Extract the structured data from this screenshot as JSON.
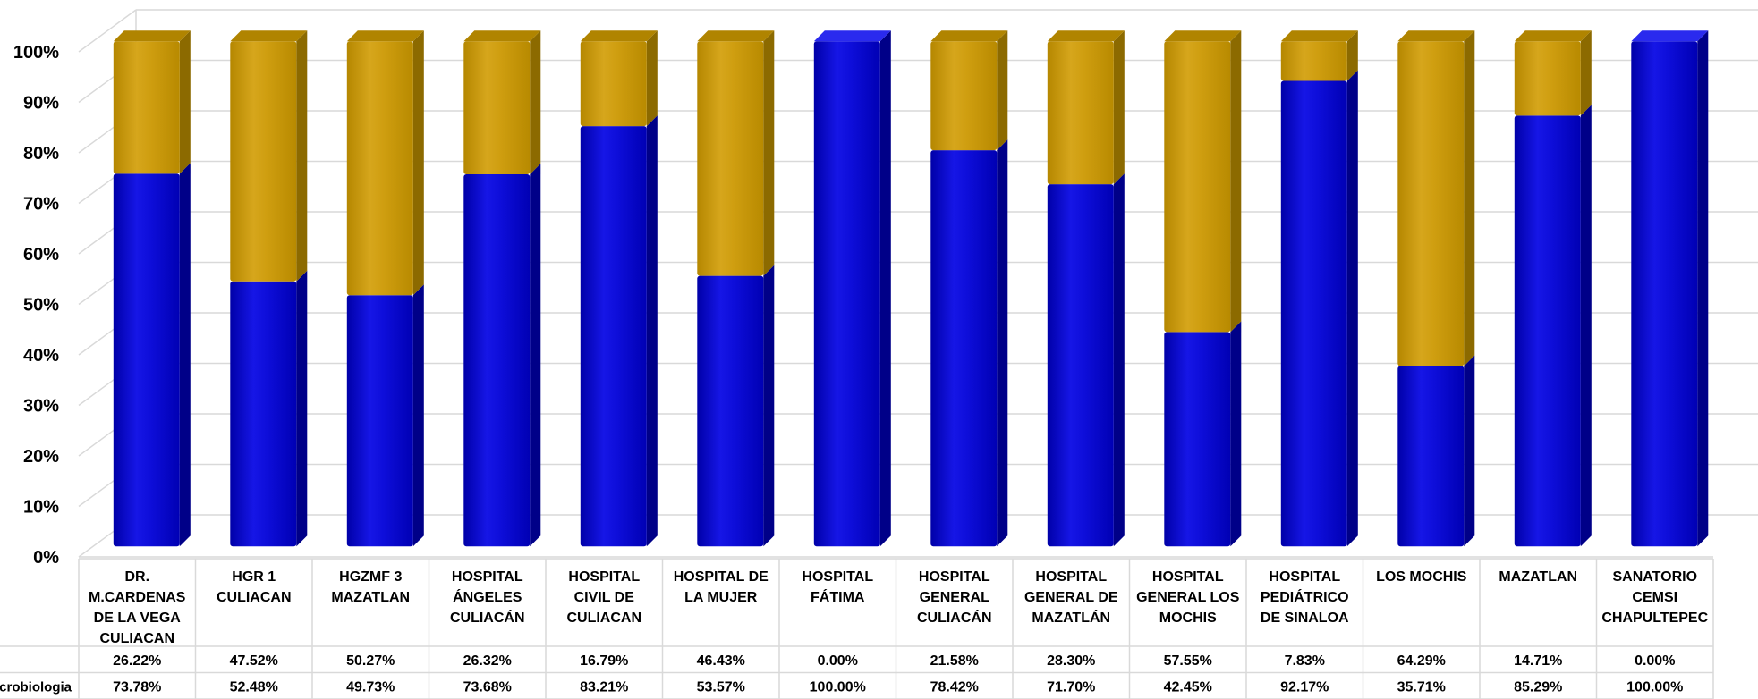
{
  "chart_data": {
    "type": "bar",
    "stacked": true,
    "percent_stacked": true,
    "three_d": true,
    "y_axis": {
      "ticks": [
        "0%",
        "10%",
        "20%",
        "30%",
        "40%",
        "50%",
        "60%",
        "70%",
        "80%",
        "90%",
        "100%"
      ],
      "ylim": [
        0,
        100
      ]
    },
    "grid": true,
    "categories": [
      "DR. M.CARDENAS DE LA VEGA CULIACAN",
      "HGR 1 CULIACAN",
      "HGZMF 3 MAZATLAN",
      "HOSPITAL ÁNGELES CULIACÁN",
      "HOSPITAL CIVIL DE CULIACAN",
      "HOSPITAL DE LA MUJER",
      "HOSPITAL FÁTIMA",
      "HOSPITAL GENERAL CULIACÁN",
      "HOSPITAL GENERAL DE MAZATLÁN",
      "HOSPITAL GENERAL LOS MOCHIS",
      "HOSPITAL PEDIÁTRICO DE SINALOA",
      "LOS MOCHIS",
      "MAZATLAN",
      "SANATORIO CEMSI CHAPULTEPEC"
    ],
    "category_lines": [
      [
        "DR.",
        "M.CARDENAS",
        "DE LA VEGA",
        "CULIACAN"
      ],
      [
        "HGR 1",
        "CULIACAN"
      ],
      [
        "HGZMF 3",
        "MAZATLAN"
      ],
      [
        "HOSPITAL",
        "ÁNGELES",
        "CULIACÁN"
      ],
      [
        "HOSPITAL",
        "CIVIL DE",
        "CULIACAN"
      ],
      [
        "HOSPITAL DE",
        "LA MUJER"
      ],
      [
        "HOSPITAL",
        "FÁTIMA"
      ],
      [
        "HOSPITAL",
        "GENERAL",
        "CULIACÁN"
      ],
      [
        "HOSPITAL",
        "GENERAL DE",
        "MAZATLÁN"
      ],
      [
        "HOSPITAL",
        "GENERAL LOS",
        "MOCHIS"
      ],
      [
        "HOSPITAL",
        "PEDIÁTRICO",
        "DE SINALOA"
      ],
      [
        "LOS MOCHIS"
      ],
      [
        "MAZATLAN"
      ],
      [
        "SANATORIO",
        "CEMSI",
        "CHAPULTEPEC"
      ]
    ],
    "series": [
      {
        "label": "crobiologia",
        "color": "#0000CC",
        "values": [
          73.78,
          52.48,
          49.73,
          73.68,
          83.21,
          53.57,
          100.0,
          78.42,
          71.7,
          42.45,
          92.17,
          35.71,
          85.29,
          100.0
        ],
        "labels": [
          "73.78%",
          "52.48%",
          "49.73%",
          "73.68%",
          "83.21%",
          "53.57%",
          "100.00%",
          "78.42%",
          "71.70%",
          "42.45%",
          "92.17%",
          "35.71%",
          "85.29%",
          "100.00%"
        ]
      },
      {
        "label": "",
        "color": "#CC9900",
        "values": [
          26.22,
          47.52,
          50.27,
          26.32,
          16.79,
          46.43,
          0.0,
          21.58,
          28.3,
          57.55,
          7.83,
          64.29,
          14.71,
          0.0
        ],
        "labels": [
          "26.22%",
          "47.52%",
          "50.27%",
          "26.32%",
          "16.79%",
          "46.43%",
          "0.00%",
          "21.58%",
          "28.30%",
          "57.55%",
          "7.83%",
          "64.29%",
          "14.71%",
          "0.00%"
        ]
      }
    ]
  }
}
